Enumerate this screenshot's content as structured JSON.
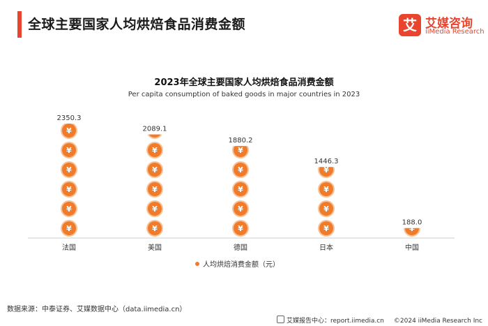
{
  "header": {
    "title": "全球主要国家人均烘焙食品消费金额"
  },
  "logo": {
    "mark": "艾",
    "cn": "艾媒咨询",
    "en": "iiMedia Research"
  },
  "chart_data": {
    "type": "pictograph-column",
    "title": "2023年全球主要国家人均烘焙食品消费金额",
    "subtitle": "Per capita consumption of baked goods in major countries in 2023",
    "categories": [
      "法国",
      "美国",
      "德国",
      "日本",
      "中国"
    ],
    "series": [
      {
        "name": "人均烘焙消费金额（元）",
        "values": [
          2350.3,
          2089.1,
          1880.2,
          1446.3,
          188.0
        ]
      }
    ],
    "value_labels": [
      "2350.3",
      "2089.1",
      "1880.2",
      "1446.3",
      "188.0"
    ],
    "unit_per_icon": 400,
    "icon_symbol": "¥",
    "legend": "bottom-center",
    "colors": {
      "icon_fill": "#f07b2a",
      "icon_ring": "#f6c39a",
      "icon_text": "#ffffff",
      "axis": "#cccccc"
    }
  },
  "footer": {
    "source": "数据来源：中泰证券、艾媒数据中心（data.iimedia.cn）",
    "report": "艾媒报告中心：report.iimedia.cn",
    "copyright": "©2024 iiMedia Research Inc"
  }
}
